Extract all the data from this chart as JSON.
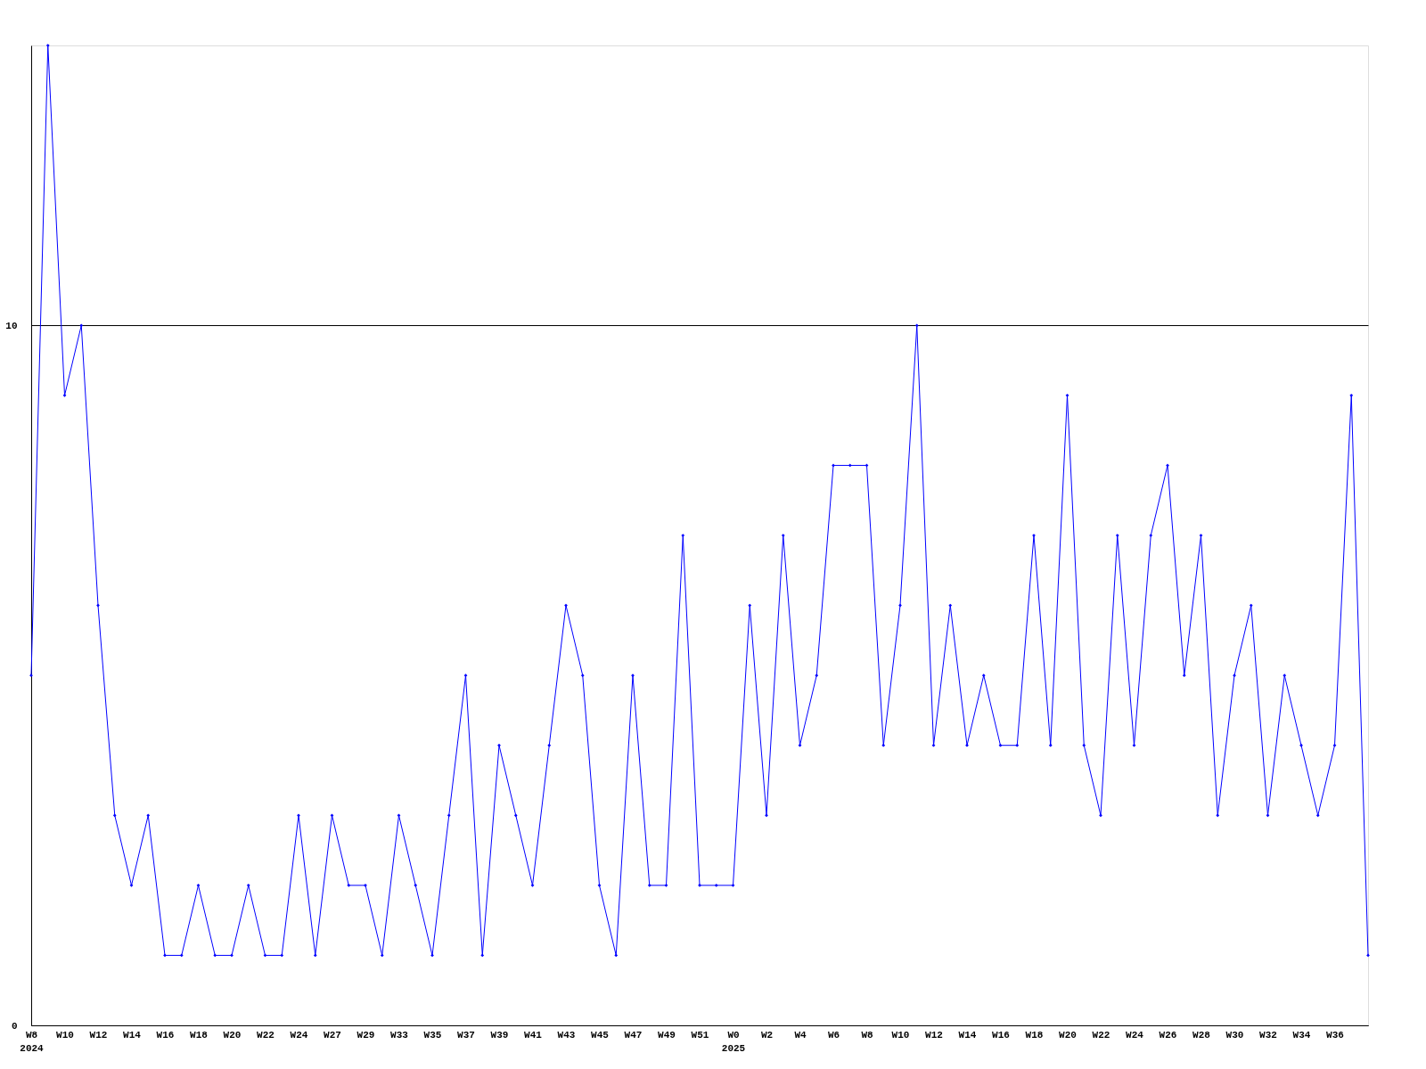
{
  "chart_data": {
    "type": "line",
    "categories": [
      "W8\n2024",
      null,
      "W10",
      null,
      "W12",
      null,
      "W14",
      null,
      "W16",
      null,
      "W18",
      null,
      "W20",
      null,
      "W22",
      null,
      "W24",
      null,
      "W27",
      null,
      "W29",
      null,
      "W33",
      null,
      "W35",
      null,
      "W37",
      null,
      "W39",
      null,
      "W41",
      null,
      "W43",
      null,
      "W45",
      null,
      "W47",
      null,
      "W49",
      null,
      "W51",
      null,
      "W0\n2025",
      null,
      "W2",
      null,
      "W4",
      null,
      "W6",
      null,
      "W8",
      null,
      "W10",
      null,
      "W12",
      null,
      "W14",
      null,
      "W16",
      null,
      "W18",
      null,
      "W20",
      null,
      "W22",
      null,
      "W24",
      null,
      "W26",
      null,
      "W28",
      null,
      "W30",
      null,
      "W32",
      null,
      "W34",
      null,
      "W36",
      null,
      null
    ],
    "series": [
      {
        "color": "#0000ff",
        "values": [
          5,
          14,
          9,
          10,
          6,
          3,
          2,
          3,
          1,
          1,
          2,
          1,
          1,
          2,
          1,
          1,
          3,
          1,
          3,
          2,
          2,
          1,
          3,
          2,
          1,
          3,
          5,
          1,
          4,
          3,
          2,
          4,
          6,
          5,
          2,
          1,
          5,
          2,
          2,
          7,
          2,
          2,
          2,
          6,
          3,
          7,
          4,
          5,
          8,
          8,
          8,
          4,
          6,
          10,
          4,
          6,
          4,
          5,
          4,
          4,
          7,
          4,
          9,
          4,
          3,
          7,
          4,
          7,
          8,
          5,
          7,
          3,
          5,
          6,
          3,
          5,
          4,
          3,
          4,
          9,
          1
        ]
      }
    ],
    "ylim": [
      0,
      14
    ],
    "yticks": [
      0,
      10
    ],
    "grid": "y",
    "marker": "diamond",
    "line_style": "solid"
  }
}
